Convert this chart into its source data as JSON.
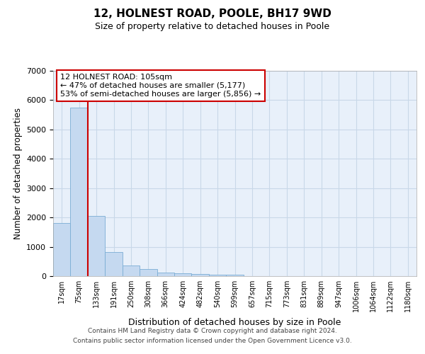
{
  "title": "12, HOLNEST ROAD, POOLE, BH17 9WD",
  "subtitle": "Size of property relative to detached houses in Poole",
  "xlabel": "Distribution of detached houses by size in Poole",
  "ylabel": "Number of detached properties",
  "bin_labels": [
    "17sqm",
    "75sqm",
    "133sqm",
    "191sqm",
    "250sqm",
    "308sqm",
    "366sqm",
    "424sqm",
    "482sqm",
    "540sqm",
    "599sqm",
    "657sqm",
    "715sqm",
    "773sqm",
    "831sqm",
    "889sqm",
    "947sqm",
    "1006sqm",
    "1064sqm",
    "1122sqm",
    "1180sqm"
  ],
  "bar_values": [
    1800,
    5750,
    2050,
    820,
    360,
    230,
    120,
    100,
    70,
    60,
    60,
    0,
    0,
    0,
    0,
    0,
    0,
    0,
    0,
    0,
    0
  ],
  "bar_color": "#c5d9f0",
  "bar_edgecolor": "#7aadd4",
  "grid_color": "#c8d8e8",
  "background_color": "#e8f0fa",
  "annotation_text": "12 HOLNEST ROAD: 105sqm\n← 47% of detached houses are smaller (5,177)\n53% of semi-detached houses are larger (5,856) →",
  "annotation_box_color": "#cc0000",
  "ylim": [
    0,
    7000
  ],
  "yticks": [
    0,
    1000,
    2000,
    3000,
    4000,
    5000,
    6000,
    7000
  ],
  "footer_line1": "Contains HM Land Registry data © Crown copyright and database right 2024.",
  "footer_line2": "Contains public sector information licensed under the Open Government Licence v3.0."
}
